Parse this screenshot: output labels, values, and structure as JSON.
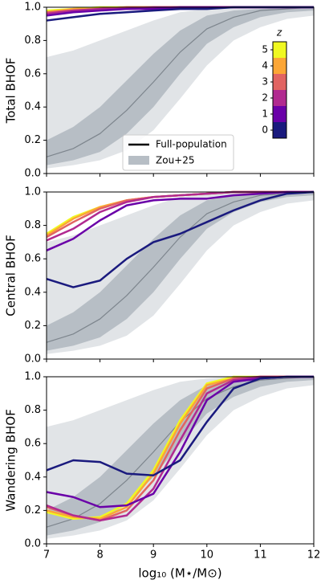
{
  "reference": {
    "name": "Zou+25",
    "colors": {
      "outer": "#e1e4e7",
      "inner": "#b7bec5",
      "median": "#7d858d"
    },
    "x": [
      7,
      7.5,
      8,
      8.5,
      9,
      9.5,
      10,
      10.5,
      11,
      11.5,
      12
    ],
    "outer_low": [
      0.03,
      0.05,
      0.08,
      0.14,
      0.26,
      0.45,
      0.65,
      0.8,
      0.88,
      0.93,
      0.95
    ],
    "outer_high": [
      0.7,
      0.74,
      0.8,
      0.86,
      0.92,
      0.97,
      0.99,
      1,
      1,
      1,
      1
    ],
    "inner_low": [
      0.05,
      0.08,
      0.13,
      0.24,
      0.4,
      0.6,
      0.78,
      0.88,
      0.94,
      0.97,
      0.98
    ],
    "inner_high": [
      0.2,
      0.28,
      0.4,
      0.56,
      0.72,
      0.86,
      0.95,
      0.98,
      0.99,
      1,
      1
    ],
    "median": [
      0.1,
      0.15,
      0.24,
      0.38,
      0.55,
      0.73,
      0.87,
      0.94,
      0.98,
      0.99,
      1
    ]
  },
  "chart_data": [
    {
      "type": "line",
      "ylabel": "Total BHOF",
      "ylim": [
        0,
        1
      ],
      "yticks": [
        {
          "value": 0,
          "label": "0.0"
        },
        {
          "value": 0.2,
          "label": "0.2"
        },
        {
          "value": 0.4,
          "label": "0.4"
        },
        {
          "value": 0.6,
          "label": "0.6"
        },
        {
          "value": 0.8,
          "label": "0.8"
        },
        {
          "value": 1,
          "label": "1.0"
        }
      ],
      "x": [
        7,
        7.5,
        8,
        8.5,
        9,
        9.5,
        10,
        10.5,
        11,
        11.5,
        12
      ],
      "legend": {
        "line_label": "Full-population"
      },
      "colorbar": {
        "label": "z",
        "ticks": [
          0,
          1,
          2,
          3,
          4,
          5
        ],
        "colors": [
          "#1a1a7e",
          "#6a00a8",
          "#b12a90",
          "#e16462",
          "#fca636",
          "#f0f921"
        ]
      },
      "series": [
        {
          "values": [
            0.92,
            0.94,
            0.96,
            0.97,
            0.98,
            0.99,
            0.99,
            1,
            1,
            1,
            1
          ]
        },
        {
          "values": [
            0.95,
            0.97,
            0.98,
            0.99,
            0.99,
            1,
            1,
            1,
            1,
            1,
            1
          ]
        },
        {
          "values": [
            0.96,
            0.98,
            0.99,
            0.99,
            1,
            1,
            1,
            1,
            1,
            1,
            1
          ]
        },
        {
          "values": [
            0.97,
            0.98,
            0.99,
            1,
            1,
            1,
            1,
            1,
            1,
            1,
            1
          ]
        },
        {
          "values": [
            0.97,
            0.99,
            0.99,
            1,
            1,
            1,
            1,
            1,
            1,
            1,
            1
          ]
        },
        {
          "values": [
            0.98,
            0.99,
            1,
            1,
            1,
            1,
            1,
            1,
            1,
            1,
            1
          ]
        }
      ]
    },
    {
      "type": "line",
      "ylabel": "Central BHOF",
      "ylim": [
        0,
        1
      ],
      "yticks": [
        {
          "value": 0,
          "label": "0.0"
        },
        {
          "value": 0.2,
          "label": "0.2"
        },
        {
          "value": 0.4,
          "label": "0.4"
        },
        {
          "value": 0.6,
          "label": "0.6"
        },
        {
          "value": 0.8,
          "label": "0.8"
        },
        {
          "value": 1,
          "label": "1.0"
        }
      ],
      "x": [
        7,
        7.5,
        8,
        8.5,
        9,
        9.5,
        10,
        10.5,
        11,
        11.5,
        12
      ],
      "series": [
        {
          "values": [
            0.48,
            0.43,
            0.47,
            0.6,
            0.7,
            0.75,
            0.82,
            0.89,
            0.95,
            0.99,
            1
          ]
        },
        {
          "values": [
            0.65,
            0.72,
            0.83,
            0.92,
            0.95,
            0.96,
            0.96,
            0.98,
            0.99,
            1,
            1
          ]
        },
        {
          "values": [
            0.71,
            0.78,
            0.88,
            0.94,
            0.97,
            0.98,
            0.99,
            1,
            1,
            1,
            1
          ]
        },
        {
          "values": [
            0.73,
            0.82,
            0.9,
            0.95,
            0.97,
            0.98,
            0.99,
            1,
            1,
            1,
            1
          ]
        },
        {
          "values": [
            0.74,
            0.84,
            0.91,
            0.95,
            0.97,
            0.98,
            0.99,
            1,
            1,
            1,
            1
          ]
        },
        {
          "values": [
            0.75,
            0.85,
            0.91,
            0.95,
            0.97,
            0.98,
            0.99,
            1,
            1,
            1,
            1
          ]
        }
      ]
    },
    {
      "type": "line",
      "ylabel": "Wandering BHOF",
      "ylim": [
        0,
        1
      ],
      "yticks": [
        {
          "value": 0,
          "label": "0.0"
        },
        {
          "value": 0.2,
          "label": "0.2"
        },
        {
          "value": 0.4,
          "label": "0.4"
        },
        {
          "value": 0.6,
          "label": "0.6"
        },
        {
          "value": 0.8,
          "label": "0.8"
        },
        {
          "value": 1,
          "label": "1.0"
        }
      ],
      "x": [
        7,
        7.5,
        8,
        8.5,
        9,
        9.5,
        10,
        10.5,
        11,
        11.5,
        12
      ],
      "xlabel": "log₁₀ (M⋆/M⊙)",
      "xlim": [
        7,
        12
      ],
      "xticks": [
        7,
        8,
        9,
        10,
        11,
        12
      ],
      "series": [
        {
          "values": [
            0.44,
            0.5,
            0.49,
            0.42,
            0.41,
            0.5,
            0.73,
            0.93,
            0.99,
            1,
            1
          ]
        },
        {
          "values": [
            0.31,
            0.28,
            0.22,
            0.23,
            0.3,
            0.55,
            0.86,
            0.97,
            0.99,
            1,
            1
          ]
        },
        {
          "values": [
            0.23,
            0.17,
            0.14,
            0.17,
            0.33,
            0.62,
            0.9,
            0.98,
            1,
            1,
            1
          ]
        },
        {
          "values": [
            0.22,
            0.17,
            0.14,
            0.2,
            0.38,
            0.68,
            0.93,
            0.99,
            1,
            1,
            1
          ]
        },
        {
          "values": [
            0.2,
            0.16,
            0.15,
            0.22,
            0.42,
            0.72,
            0.95,
            0.99,
            1,
            1,
            1
          ]
        },
        {
          "values": [
            0.19,
            0.15,
            0.16,
            0.24,
            0.44,
            0.74,
            0.96,
            1,
            1,
            1,
            1
          ]
        }
      ]
    }
  ]
}
